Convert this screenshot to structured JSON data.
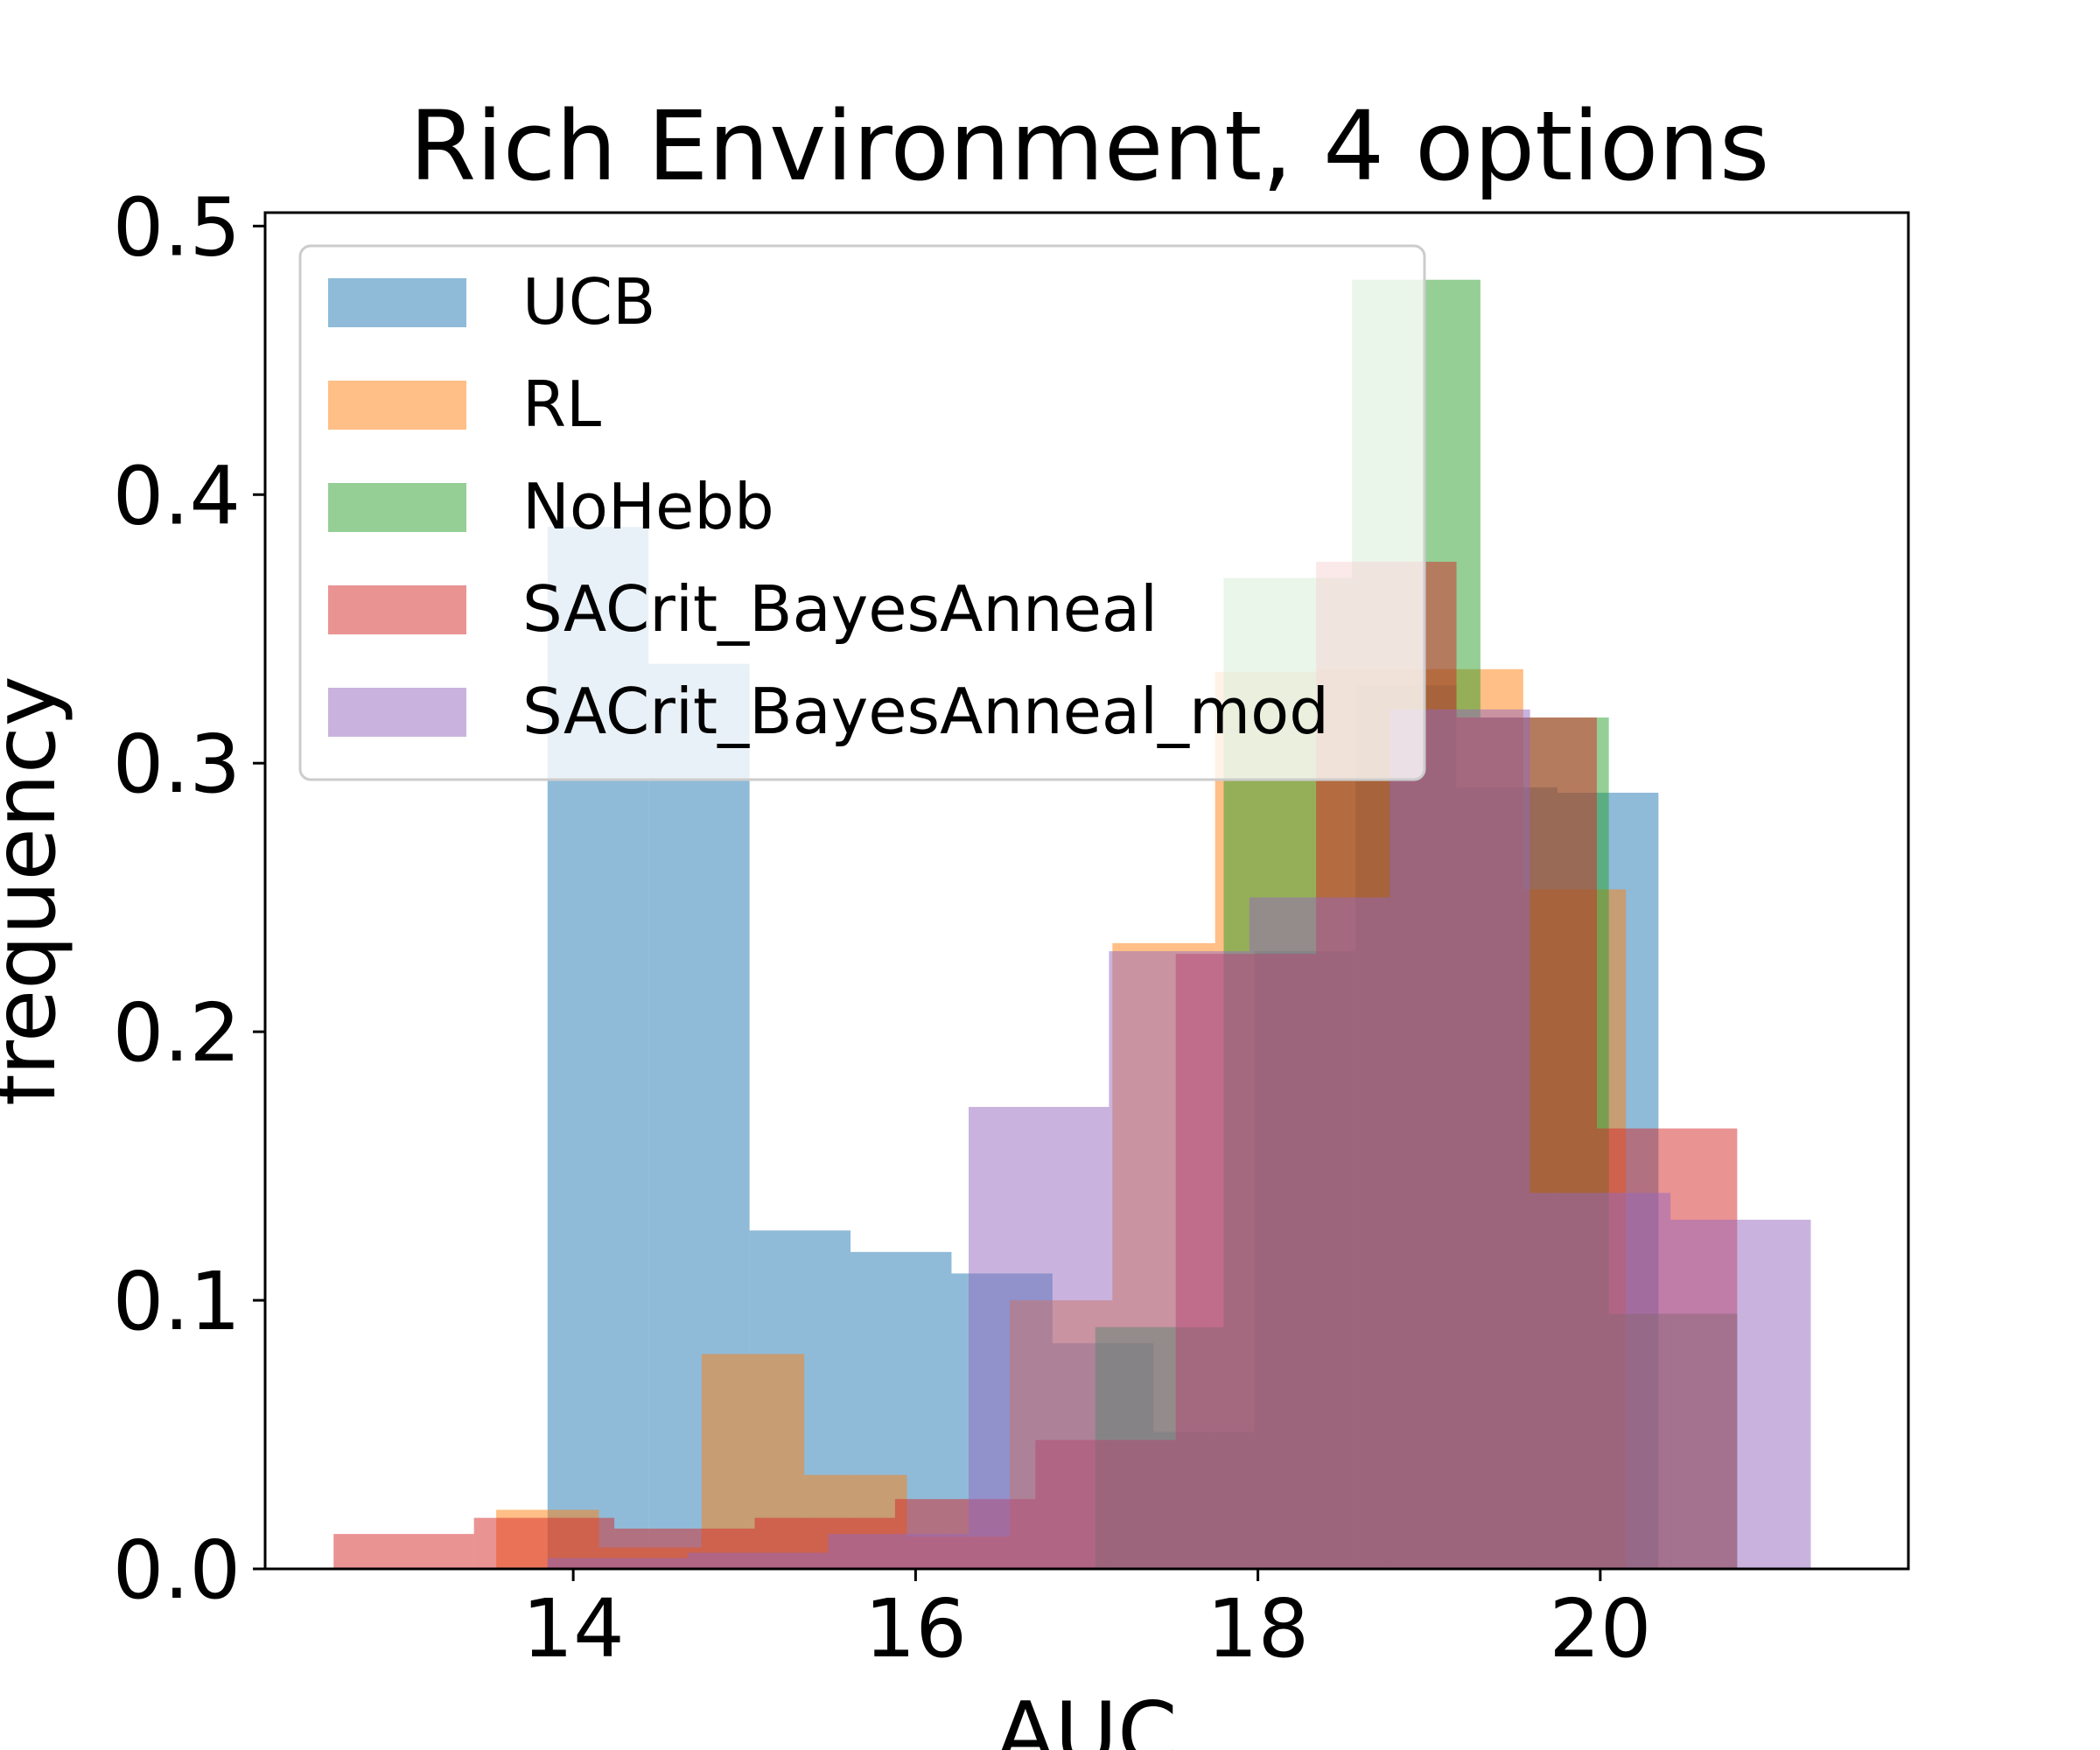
{
  "chart_data": {
    "type": "histogram",
    "title": "Rich Environment, 4 options",
    "xlabel": "AUC",
    "ylabel": "frequency",
    "xlim": [
      12.2,
      21.8
    ],
    "ylim": [
      0,
      0.505
    ],
    "xticks": [
      14,
      16,
      18,
      20
    ],
    "yticks": [
      0.0,
      0.1,
      0.2,
      0.3,
      0.4,
      0.5
    ],
    "grid": false,
    "legend_position": "upper-left",
    "series": [
      {
        "name": "UCB",
        "color": "#1f77b4",
        "alpha": 0.5,
        "edges": [
          13.85,
          14.44,
          15.03,
          15.62,
          16.21,
          16.8,
          17.39,
          17.98,
          18.57,
          19.16,
          19.75,
          20.34
        ],
        "values": [
          0.388,
          0.337,
          0.126,
          0.118,
          0.11,
          0.084,
          0.051,
          0.23,
          0.329,
          0.291,
          0.289
        ]
      },
      {
        "name": "RL",
        "color": "#ff7f0e",
        "alpha": 0.5,
        "edges": [
          13.55,
          14.15,
          14.75,
          15.35,
          15.95,
          16.55,
          17.15,
          17.75,
          18.35,
          18.95,
          19.55,
          20.15
        ],
        "values": [
          0.022,
          0.008,
          0.08,
          0.035,
          0.012,
          0.1,
          0.233,
          0.334,
          0.335,
          0.335,
          0.253
        ]
      },
      {
        "name": "NoHebb",
        "color": "#2ca02c",
        "alpha": 0.5,
        "edges": [
          17.05,
          17.8,
          18.55,
          19.3,
          20.05,
          20.8
        ],
        "values": [
          0.09,
          0.369,
          0.48,
          0.317,
          0.095
        ]
      },
      {
        "name": "SACrit_BayesAnneal",
        "color": "#d62728",
        "alpha": 0.5,
        "edges": [
          12.6,
          13.42,
          14.24,
          15.06,
          15.88,
          16.7,
          17.52,
          18.34,
          19.16,
          19.98,
          20.8
        ],
        "values": [
          0.013,
          0.019,
          0.015,
          0.019,
          0.026,
          0.048,
          0.229,
          0.375,
          0.317,
          0.164
        ]
      },
      {
        "name": "SACrit_BayesAnneal_mod",
        "color": "#9467bd",
        "alpha": 0.5,
        "edges": [
          13.85,
          14.67,
          15.49,
          16.31,
          17.13,
          17.95,
          18.77,
          19.59,
          20.41,
          21.23
        ],
        "values": [
          0.004,
          0.006,
          0.013,
          0.172,
          0.23,
          0.25,
          0.32,
          0.14,
          0.13
        ]
      }
    ]
  }
}
